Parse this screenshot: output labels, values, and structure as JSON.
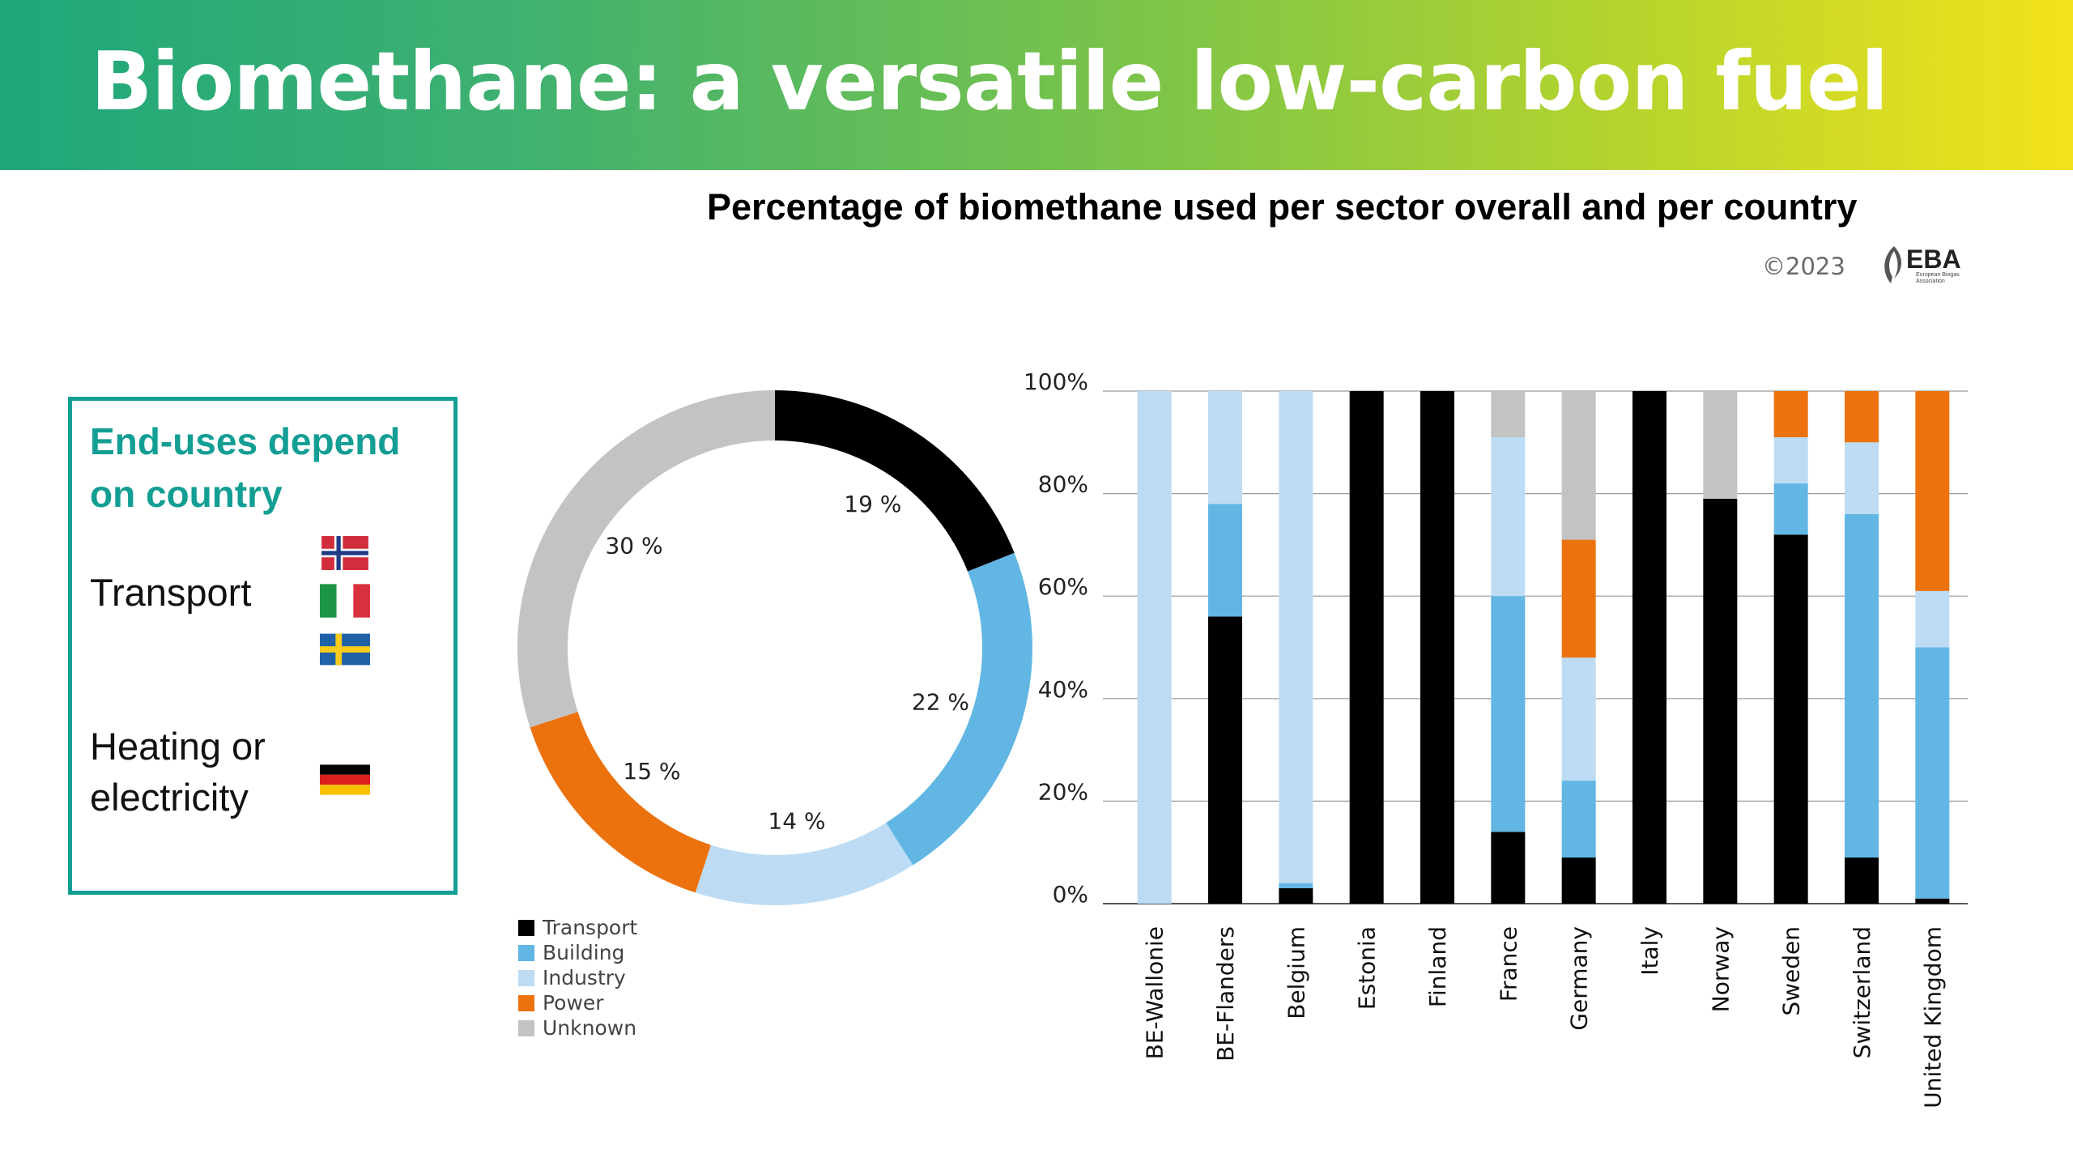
{
  "header": {
    "title": "Biomethane: a versatile low-carbon fuel"
  },
  "chart_heading": "Percentage of biomethane used per sector overall and per country",
  "copyright": "©2023",
  "logo": {
    "name": "EBA",
    "subtitle": "European Biogas Association"
  },
  "sidebox": {
    "heading": "End-uses depend on country",
    "groups": [
      {
        "label": "Transport",
        "flags": [
          "norway-flag",
          "italy-flag",
          "sweden-flag"
        ]
      },
      {
        "label": "Heating or electricity",
        "flags": [
          "germany-flag"
        ]
      }
    ]
  },
  "colors": {
    "Transport": "#000000",
    "Building": "#62b6e4",
    "Industry": "#bddcf3",
    "Power": "#ec720e",
    "Unknown": "#c3c3c3",
    "accent": "#139e94"
  },
  "chart_data": [
    {
      "type": "pie",
      "variant": "donut",
      "categories": [
        "Transport",
        "Building",
        "Industry",
        "Power",
        "Unknown"
      ],
      "values": [
        19,
        22,
        14,
        15,
        30
      ],
      "labels": [
        "19 %",
        "22 %",
        "14 %",
        "15 %",
        "30 %"
      ],
      "legend": [
        "Transport",
        "Building",
        "Industry",
        "Power",
        "Unknown"
      ],
      "legend_position": "bottom-left"
    },
    {
      "type": "bar",
      "stacked": true,
      "categories": [
        "BE-Wallonie",
        "BE-Flanders",
        "Belgium",
        "Estonia",
        "Finland",
        "France",
        "Germany",
        "Italy",
        "Norway",
        "Sweden",
        "Switzerland",
        "United Kingdom"
      ],
      "series": [
        {
          "name": "Transport",
          "values": [
            0,
            56,
            3,
            100,
            100,
            14,
            9,
            100,
            79,
            72,
            9,
            1
          ]
        },
        {
          "name": "Building",
          "values": [
            0,
            22,
            1,
            0,
            0,
            46,
            15,
            0,
            0,
            10,
            67,
            49
          ]
        },
        {
          "name": "Industry",
          "values": [
            100,
            22,
            96,
            0,
            0,
            31,
            24,
            0,
            0,
            9,
            14,
            11
          ]
        },
        {
          "name": "Power",
          "values": [
            0,
            0,
            0,
            0,
            0,
            0,
            23,
            0,
            0,
            9,
            10,
            39
          ]
        },
        {
          "name": "Unknown",
          "values": [
            0,
            0,
            0,
            0,
            0,
            9,
            29,
            0,
            21,
            0,
            0,
            0
          ]
        }
      ],
      "ylim": [
        0,
        100
      ],
      "yticks": [
        "0%",
        "20%",
        "40%",
        "60%",
        "80%",
        "100%"
      ],
      "grid": true
    }
  ]
}
